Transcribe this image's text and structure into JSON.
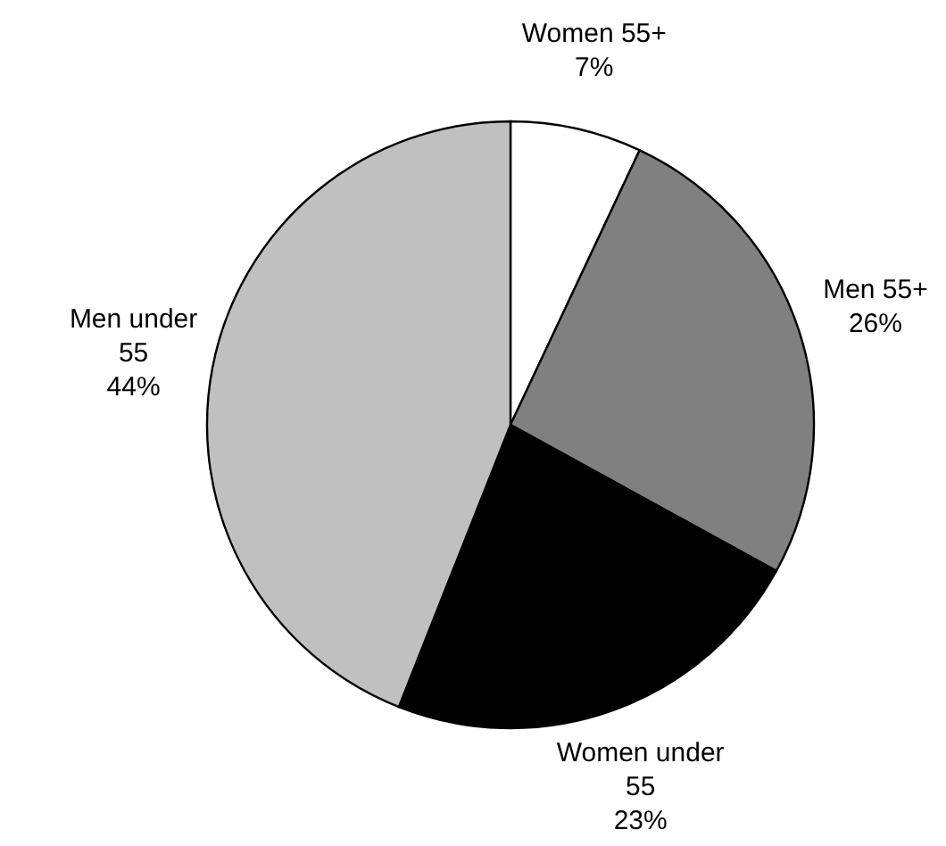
{
  "chart_data": {
    "type": "pie",
    "categories": [
      "Women 55+",
      "Men 55+",
      "Women under 55",
      "Men under 55"
    ],
    "values": [
      7,
      26,
      23,
      44
    ],
    "colors": [
      "#ffffff",
      "#808080",
      "#000000",
      "#c0c0c0"
    ],
    "value_labels": [
      "7%",
      "26%",
      "23%",
      "44%"
    ]
  }
}
